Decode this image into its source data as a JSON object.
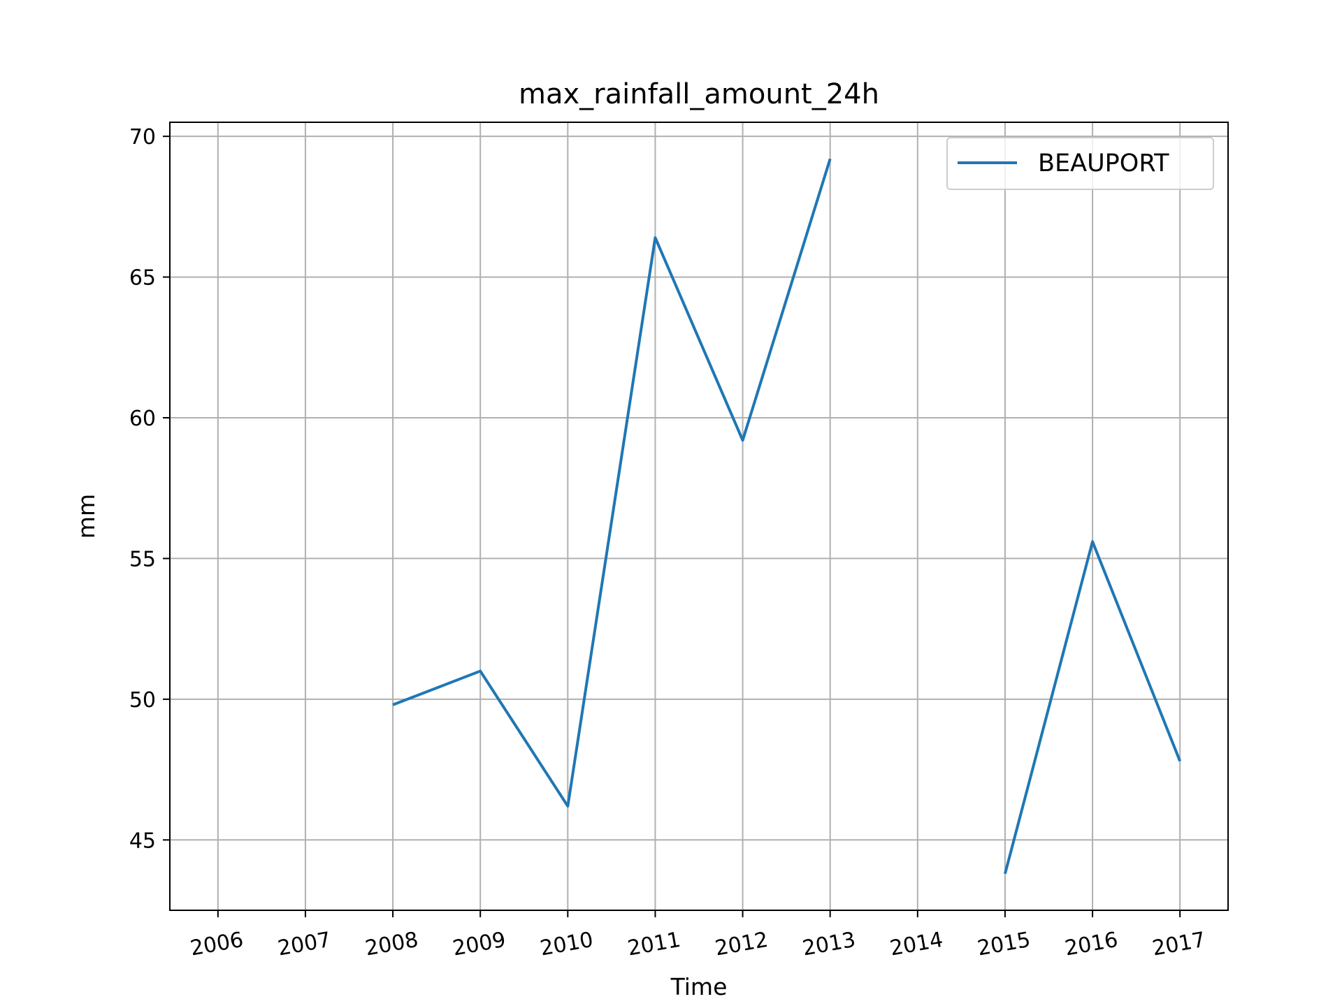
{
  "chart_data": {
    "type": "line",
    "title": "max_rainfall_amount_24h",
    "xlabel": "Time",
    "ylabel": "mm",
    "x": [
      "2006",
      "2007",
      "2008",
      "2009",
      "2010",
      "2011",
      "2012",
      "2013",
      "2014",
      "2015",
      "2016",
      "2017"
    ],
    "xlim": [
      2005.45,
      2017.55
    ],
    "ylim": [
      42.5,
      70.5
    ],
    "yticks": [
      45,
      50,
      55,
      60,
      65,
      70
    ],
    "grid": true,
    "legend_position": "upper right",
    "series": [
      {
        "name": "BEAUPORT",
        "color": "#1f77b4",
        "values": [
          null,
          null,
          49.8,
          51.0,
          46.2,
          66.4,
          59.2,
          69.2,
          null,
          43.8,
          55.6,
          47.8
        ]
      }
    ]
  }
}
